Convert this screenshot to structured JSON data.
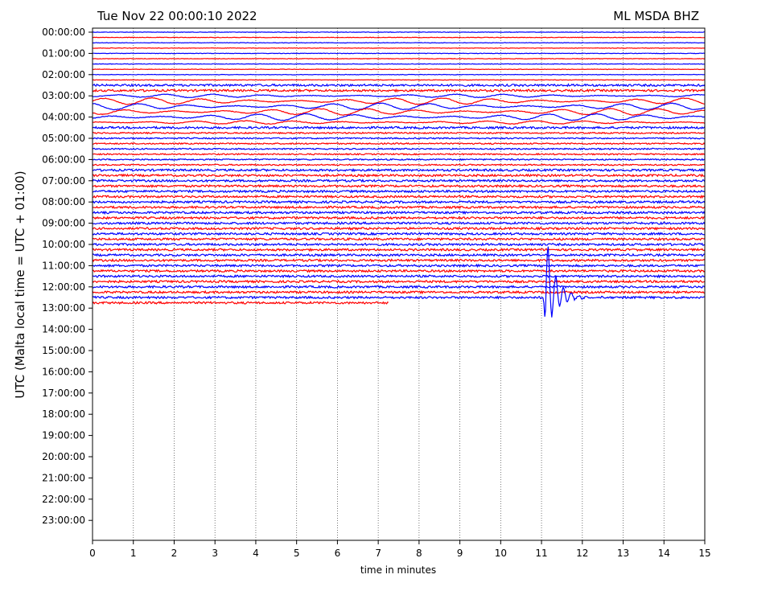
{
  "header": {
    "datetime": "Tue Nov 22 00:00:10 2022",
    "station": "ML MSDA BHZ"
  },
  "chart_data": {
    "type": "line",
    "title": "",
    "xlabel": "time in minutes",
    "ylabel": "UTC (Malta local time = UTC + 01:00)",
    "xlim": [
      0,
      15
    ],
    "x_ticks": [
      "0",
      "1",
      "2",
      "3",
      "4",
      "5",
      "6",
      "7",
      "8",
      "9",
      "10",
      "11",
      "12",
      "13",
      "14",
      "15"
    ],
    "y_ticks": [
      "00:00:00",
      "01:00:00",
      "02:00:00",
      "03:00:00",
      "04:00:00",
      "05:00:00",
      "06:00:00",
      "07:00:00",
      "08:00:00",
      "09:00:00",
      "10:00:00",
      "11:00:00",
      "12:00:00",
      "13:00:00",
      "14:00:00",
      "15:00:00",
      "16:00:00",
      "17:00:00",
      "18:00:00",
      "19:00:00",
      "20:00:00",
      "21:00:00",
      "22:00:00",
      "23:00:00"
    ],
    "traces_per_hour": 4,
    "trace_minutes": 15,
    "trace_colors": [
      "#0000ff",
      "#ff0000"
    ],
    "last_trace_end_minute": 7.25,
    "event": {
      "trace_hour": 12.5,
      "onset_minute": 11.05,
      "color": "#0000ff"
    },
    "grid": "vertical-dotted",
    "legend": "none"
  }
}
